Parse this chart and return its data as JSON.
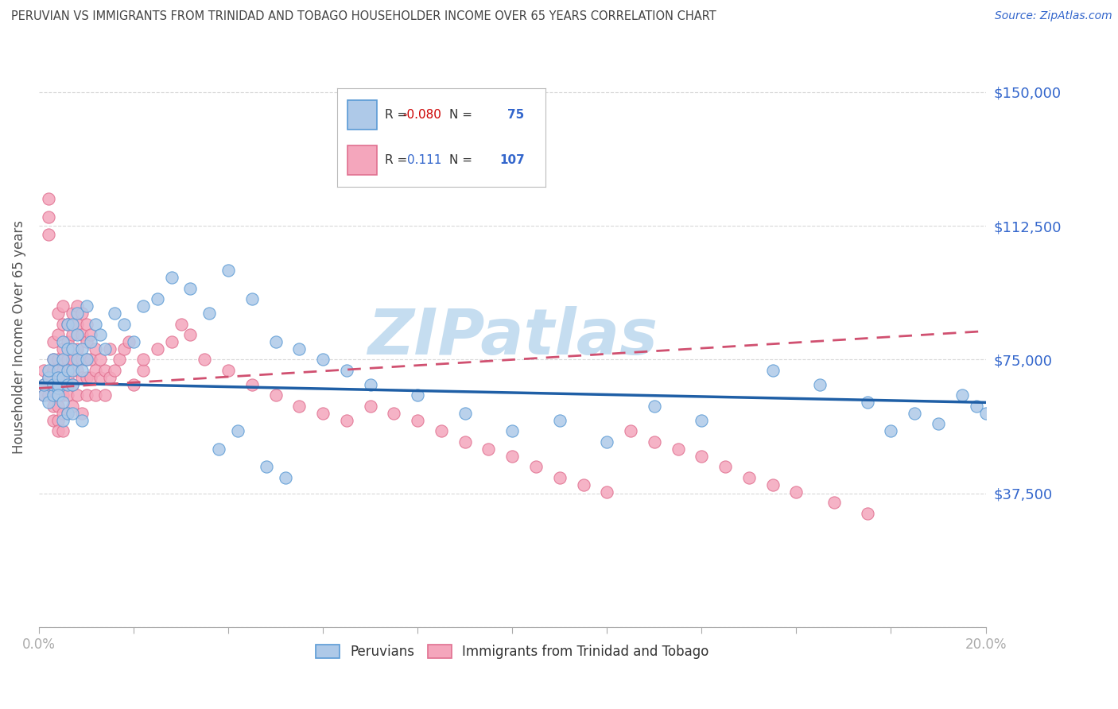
{
  "title": "PERUVIAN VS IMMIGRANTS FROM TRINIDAD AND TOBAGO HOUSEHOLDER INCOME OVER 65 YEARS CORRELATION CHART",
  "source": "Source: ZipAtlas.com",
  "ylabel": "Householder Income Over 65 years",
  "xlim": [
    0.0,
    0.2
  ],
  "ylim": [
    0,
    162500
  ],
  "ytick_vals": [
    0,
    37500,
    75000,
    112500,
    150000
  ],
  "ytick_labels": [
    "",
    "$37,500",
    "$75,000",
    "$112,500",
    "$150,000"
  ],
  "xticks": [
    0.0,
    0.02,
    0.04,
    0.06,
    0.08,
    0.1,
    0.12,
    0.14,
    0.16,
    0.18,
    0.2
  ],
  "blue_R": -0.08,
  "blue_N": 75,
  "pink_R": 0.111,
  "pink_N": 107,
  "blue_color": "#aec9e8",
  "pink_color": "#f4a6bc",
  "blue_edge_color": "#5b9bd5",
  "pink_edge_color": "#e07090",
  "blue_line_color": "#1f5fa6",
  "pink_line_color": "#d05070",
  "watermark": "ZIPatlas",
  "watermark_color": "#c5ddf0",
  "legend_blue_label": "Peruvians",
  "legend_pink_label": "Immigrants from Trinidad and Tobago",
  "title_color": "#444444",
  "axis_label_color": "#555555",
  "tick_label_color_blue": "#3366cc",
  "tick_color": "#aaaaaa",
  "grid_color": "#d8d8d8",
  "blue_scatter_x": [
    0.001,
    0.001,
    0.002,
    0.002,
    0.002,
    0.003,
    0.003,
    0.003,
    0.004,
    0.004,
    0.004,
    0.004,
    0.004,
    0.005,
    0.005,
    0.005,
    0.005,
    0.005,
    0.006,
    0.006,
    0.006,
    0.006,
    0.006,
    0.007,
    0.007,
    0.007,
    0.007,
    0.007,
    0.008,
    0.008,
    0.008,
    0.009,
    0.009,
    0.009,
    0.01,
    0.01,
    0.011,
    0.012,
    0.013,
    0.014,
    0.016,
    0.018,
    0.02,
    0.022,
    0.025,
    0.028,
    0.032,
    0.036,
    0.04,
    0.045,
    0.05,
    0.055,
    0.06,
    0.065,
    0.07,
    0.08,
    0.09,
    0.1,
    0.11,
    0.12,
    0.13,
    0.14,
    0.155,
    0.165,
    0.175,
    0.18,
    0.185,
    0.19,
    0.195,
    0.198,
    0.2,
    0.038,
    0.042,
    0.048,
    0.052
  ],
  "blue_scatter_y": [
    65000,
    68000,
    70000,
    63000,
    72000,
    65000,
    68000,
    75000,
    67000,
    72000,
    68000,
    65000,
    70000,
    80000,
    75000,
    70000,
    63000,
    58000,
    85000,
    78000,
    72000,
    68000,
    60000,
    85000,
    78000,
    72000,
    68000,
    60000,
    88000,
    82000,
    75000,
    78000,
    72000,
    58000,
    90000,
    75000,
    80000,
    85000,
    82000,
    78000,
    88000,
    85000,
    80000,
    90000,
    92000,
    98000,
    95000,
    88000,
    100000,
    92000,
    80000,
    78000,
    75000,
    72000,
    68000,
    65000,
    60000,
    55000,
    58000,
    52000,
    62000,
    58000,
    72000,
    68000,
    63000,
    55000,
    60000,
    57000,
    65000,
    62000,
    60000,
    50000,
    55000,
    45000,
    42000
  ],
  "pink_scatter_x": [
    0.001,
    0.001,
    0.001,
    0.002,
    0.002,
    0.002,
    0.002,
    0.002,
    0.003,
    0.003,
    0.003,
    0.003,
    0.003,
    0.003,
    0.003,
    0.004,
    0.004,
    0.004,
    0.004,
    0.004,
    0.004,
    0.004,
    0.005,
    0.005,
    0.005,
    0.005,
    0.005,
    0.005,
    0.005,
    0.005,
    0.006,
    0.006,
    0.006,
    0.006,
    0.006,
    0.006,
    0.007,
    0.007,
    0.007,
    0.007,
    0.007,
    0.008,
    0.008,
    0.008,
    0.008,
    0.008,
    0.009,
    0.009,
    0.009,
    0.009,
    0.009,
    0.01,
    0.01,
    0.01,
    0.01,
    0.01,
    0.011,
    0.011,
    0.011,
    0.012,
    0.012,
    0.012,
    0.013,
    0.013,
    0.014,
    0.014,
    0.015,
    0.015,
    0.016,
    0.017,
    0.018,
    0.019,
    0.02,
    0.022,
    0.022,
    0.025,
    0.028,
    0.03,
    0.032,
    0.035,
    0.04,
    0.045,
    0.05,
    0.055,
    0.06,
    0.065,
    0.07,
    0.075,
    0.08,
    0.085,
    0.09,
    0.095,
    0.1,
    0.105,
    0.11,
    0.115,
    0.12,
    0.125,
    0.13,
    0.135,
    0.14,
    0.145,
    0.15,
    0.155,
    0.16,
    0.168,
    0.175
  ],
  "pink_scatter_y": [
    68000,
    72000,
    65000,
    115000,
    120000,
    110000,
    65000,
    70000,
    75000,
    80000,
    68000,
    72000,
    65000,
    58000,
    62000,
    88000,
    82000,
    75000,
    68000,
    62000,
    58000,
    55000,
    90000,
    85000,
    78000,
    72000,
    68000,
    65000,
    60000,
    55000,
    85000,
    80000,
    75000,
    70000,
    65000,
    60000,
    88000,
    82000,
    75000,
    68000,
    62000,
    90000,
    85000,
    78000,
    72000,
    65000,
    88000,
    82000,
    75000,
    70000,
    60000,
    85000,
    80000,
    75000,
    70000,
    65000,
    82000,
    75000,
    70000,
    78000,
    72000,
    65000,
    75000,
    70000,
    72000,
    65000,
    78000,
    70000,
    72000,
    75000,
    78000,
    80000,
    68000,
    72000,
    75000,
    78000,
    80000,
    85000,
    82000,
    75000,
    72000,
    68000,
    65000,
    62000,
    60000,
    58000,
    62000,
    60000,
    58000,
    55000,
    52000,
    50000,
    48000,
    45000,
    42000,
    40000,
    38000,
    55000,
    52000,
    50000,
    48000,
    45000,
    42000,
    40000,
    38000,
    35000,
    32000
  ]
}
